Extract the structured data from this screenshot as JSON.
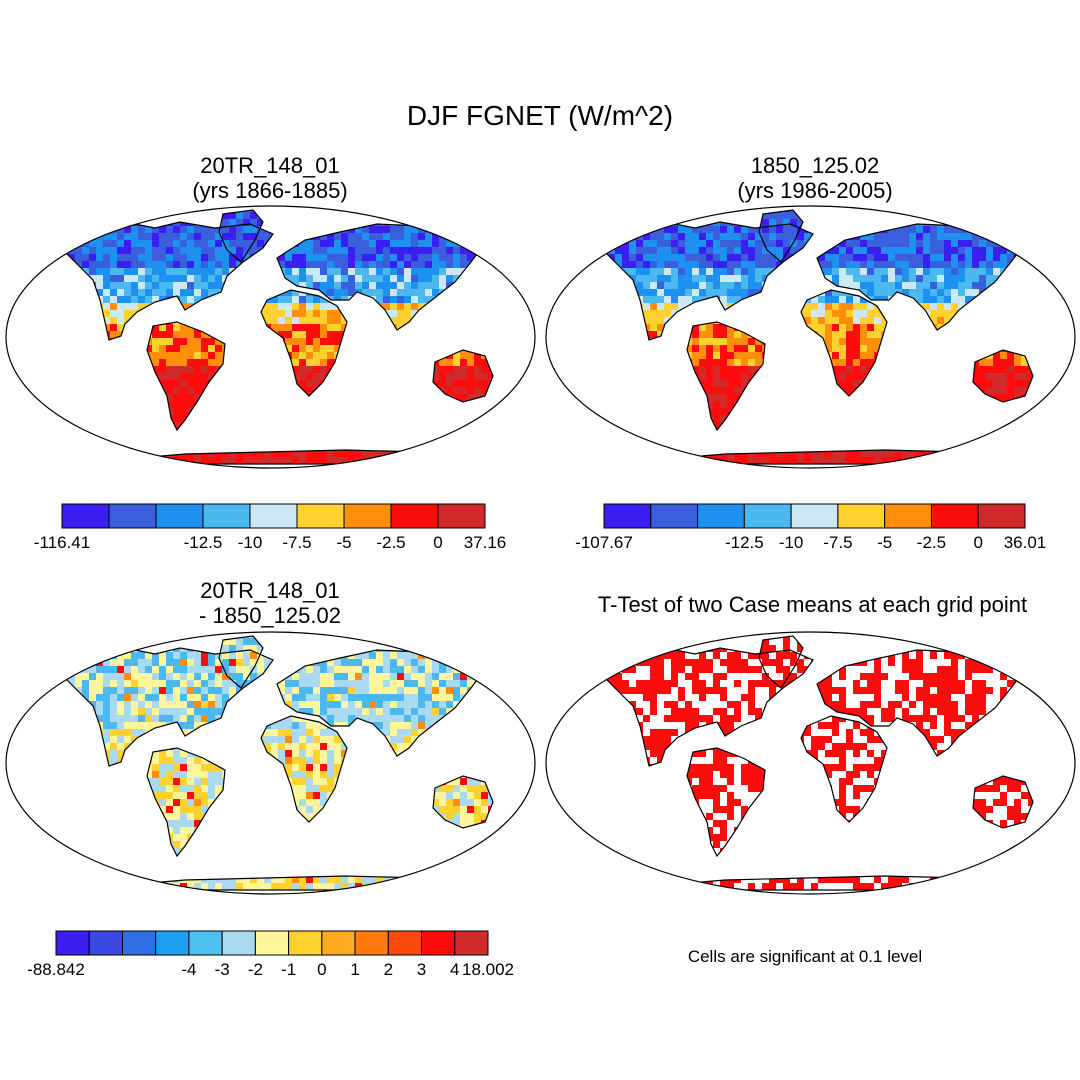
{
  "title": "DJF FGNET (W/m^2)",
  "panels": [
    {
      "id": "case1",
      "title_line1": "20TR_148_01",
      "title_line2": "(yrs 1866-1885)",
      "colorbar": {
        "colors": [
          "#3a1ff0",
          "#3a5fdd",
          "#1e90f0",
          "#4cb8f0",
          "#cde8f5",
          "#fdd12e",
          "#fe8e0c",
          "#fc0c0c",
          "#d02a2a"
        ],
        "labels": [
          "-116.41",
          "-12.5",
          "-10",
          "-7.5",
          "-5",
          "-2.5",
          "0",
          "37.16"
        ]
      },
      "land_palette": [
        "#3a1ff0",
        "#3a5fdd",
        "#1e90f0",
        "#4cb8f0",
        "#cde8f5",
        "#fdd12e",
        "#fe8e0c",
        "#fc0c0c",
        "#d02a2a"
      ]
    },
    {
      "id": "case2",
      "title_line1": "1850_125.02",
      "title_line2": "(yrs 1986-2005)",
      "colorbar": {
        "colors": [
          "#3a1ff0",
          "#3a5fdd",
          "#1e90f0",
          "#4cb8f0",
          "#cde8f5",
          "#fdd12e",
          "#fe8e0c",
          "#fc0c0c",
          "#d02a2a"
        ],
        "labels": [
          "-107.67",
          "-12.5",
          "-10",
          "-7.5",
          "-5",
          "-2.5",
          "0",
          "36.01"
        ]
      },
      "land_palette": [
        "#3a1ff0",
        "#3a5fdd",
        "#1e90f0",
        "#4cb8f0",
        "#cde8f5",
        "#fdd12e",
        "#fe8e0c",
        "#fc0c0c",
        "#d02a2a"
      ]
    },
    {
      "id": "diff",
      "title_line1": "20TR_148_01",
      "title_line2": "- 1850_125.02",
      "colorbar": {
        "colors": [
          "#3a1ff0",
          "#3a4ae0",
          "#2f6fe5",
          "#1ea0f0",
          "#4cc0ee",
          "#aadaf2",
          "#fff59a",
          "#fdd12e",
          "#fdaa1e",
          "#fe7a0c",
          "#fc4a0c",
          "#fc0c0c",
          "#d02a2a"
        ],
        "labels": [
          "-88.842",
          "-4",
          "-3",
          "-2",
          "-1",
          "0",
          "1",
          "2",
          "3",
          "4",
          "18.002"
        ]
      },
      "land_palette": [
        "#3a5fdd",
        "#4cb8f0",
        "#aadaf2",
        "#fff59a",
        "#fdd12e",
        "#fe8e0c",
        "#fc0c0c"
      ]
    },
    {
      "id": "ttest",
      "title": "T-Test of two Case means at each grid point",
      "note": "Cells are significant at 0.1 level",
      "land_palette": [
        "#fc0c0c",
        "#ffffff"
      ]
    }
  ]
}
